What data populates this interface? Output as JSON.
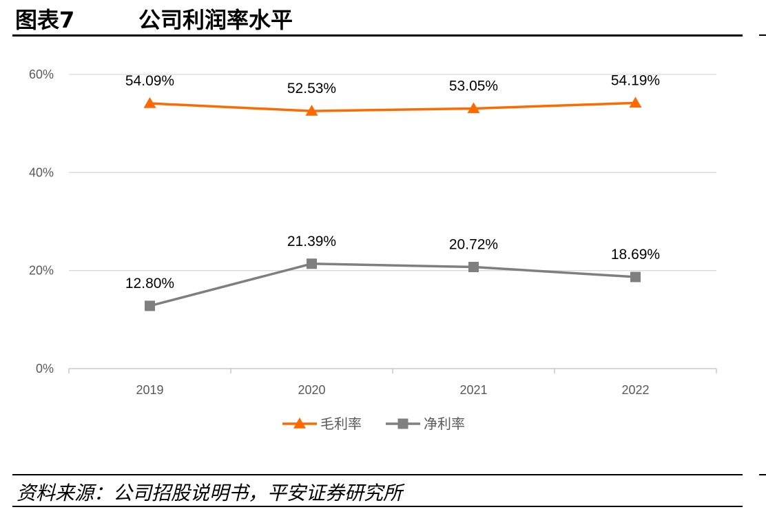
{
  "header": {
    "figure_label": "图表7",
    "figure_title": "公司利润率水平"
  },
  "footer": {
    "source": "资料来源：公司招股说明书，平安证券研究所"
  },
  "chart_data": {
    "type": "line",
    "categories": [
      "2019",
      "2020",
      "2021",
      "2022"
    ],
    "series": [
      {
        "name": "毛利率",
        "values": [
          54.09,
          52.53,
          53.05,
          54.19
        ],
        "labels": [
          "54.09%",
          "52.53%",
          "53.05%",
          "54.19%"
        ],
        "color": "#FF6A00",
        "marker": "triangle"
      },
      {
        "name": "净利率",
        "values": [
          12.8,
          21.39,
          20.72,
          18.69
        ],
        "labels": [
          "12.80%",
          "21.39%",
          "20.72%",
          "18.69%"
        ],
        "color": "#7F7F7F",
        "marker": "square"
      }
    ],
    "y_ticks": [
      "0%",
      "20%",
      "40%",
      "60%"
    ],
    "ylim": [
      0,
      60
    ],
    "grid": true,
    "legend_position": "bottom"
  }
}
